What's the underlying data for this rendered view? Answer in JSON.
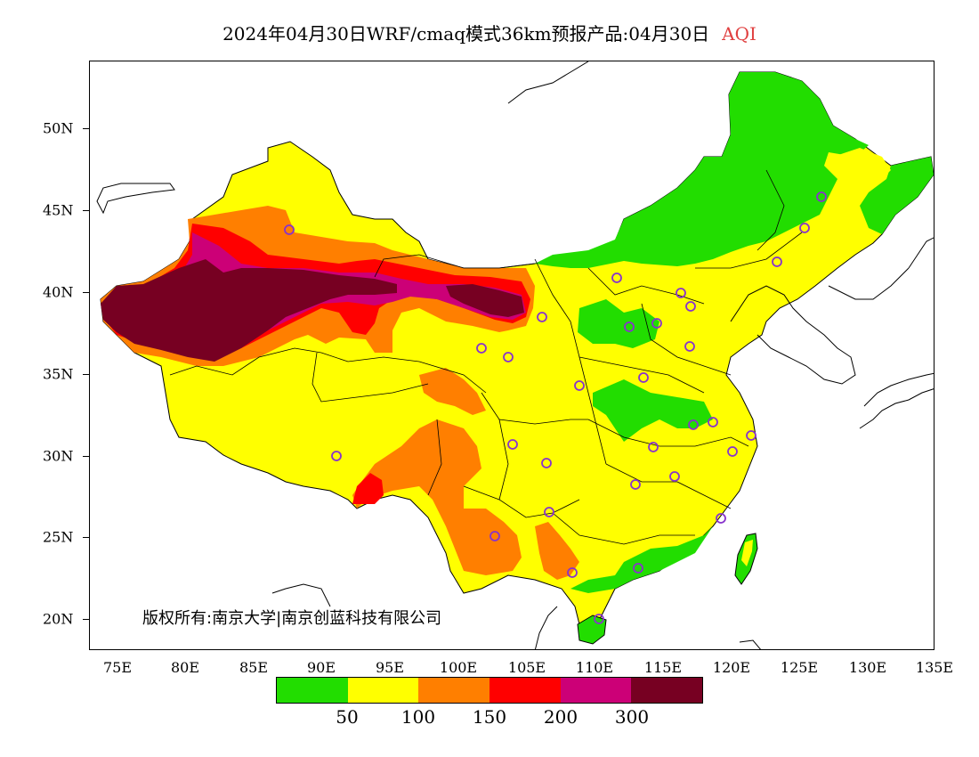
{
  "header": {
    "title": "2024年04月30日WRF/cmaq模式36km预报产品:04月30日",
    "variable": "AQI"
  },
  "axes": {
    "lat_labels": [
      "50N",
      "45N",
      "40N",
      "35N",
      "30N",
      "25N",
      "20N"
    ],
    "lon_labels": [
      "75E",
      "80E",
      "85E",
      "90E",
      "95E",
      "100E",
      "105E",
      "110E",
      "115E",
      "120E",
      "125E",
      "130E",
      "135E"
    ]
  },
  "copyright": "版权所有:南京大学|南京创蓝科技有限公司",
  "legend": {
    "colors": [
      "#22dd00",
      "#ffff00",
      "#ff7f00",
      "#ff0000",
      "#cc0077",
      "#770022"
    ],
    "labels": [
      "50",
      "100",
      "150",
      "200",
      "300"
    ]
  },
  "colors": {
    "station_marker": "#8833cc",
    "boundary": "#000000"
  }
}
